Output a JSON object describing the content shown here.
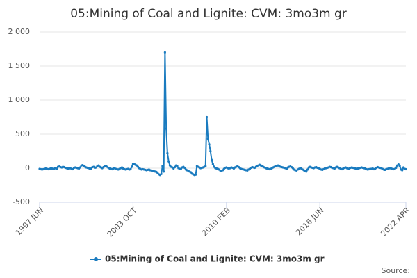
{
  "chart_data": {
    "type": "line",
    "title": "05:Mining of Coal and Lignite: CVM: 3mo3m gr",
    "source": "Source:",
    "categories": [
      "1997 JUN",
      null,
      null,
      null,
      null,
      null,
      null,
      null,
      null,
      null,
      null,
      null,
      null,
      null,
      null,
      null,
      null,
      null,
      null,
      null,
      null,
      null,
      null,
      null,
      null,
      null,
      null,
      null,
      null,
      null,
      null,
      null,
      null,
      null,
      null,
      null,
      null,
      null,
      null,
      null,
      null,
      null,
      null,
      null,
      null,
      null,
      null,
      null,
      null,
      null,
      null,
      null,
      null,
      null,
      null,
      null,
      null,
      null,
      null,
      null,
      null,
      null,
      null,
      null,
      null,
      null,
      null,
      null,
      null,
      null,
      null,
      null,
      null,
      null,
      null,
      null,
      "2003 OCT",
      null,
      null,
      null,
      null,
      null,
      null,
      null,
      null,
      null,
      null,
      null,
      null,
      null,
      null,
      null,
      null,
      null,
      null,
      null,
      null,
      null,
      null,
      null,
      null,
      null,
      null,
      null,
      null,
      null,
      null,
      null,
      null,
      null,
      null,
      null,
      null,
      null,
      null,
      null,
      null,
      null,
      null,
      null,
      null,
      null,
      null,
      null,
      null,
      null,
      null,
      null,
      null,
      null,
      null,
      null,
      null,
      null,
      null,
      null,
      null,
      null,
      null,
      null,
      null,
      null,
      null,
      null,
      null,
      null,
      null,
      null,
      null,
      null,
      null,
      null,
      "2010 FEB",
      null,
      null,
      null,
      null,
      null,
      null,
      null,
      null,
      null,
      null,
      null,
      null,
      null,
      null,
      null,
      null,
      null,
      null,
      null,
      null,
      null,
      null,
      null,
      null,
      null,
      null,
      null,
      null,
      null,
      null,
      null,
      null,
      null,
      null,
      null,
      null,
      null,
      null,
      null,
      null,
      null,
      null,
      null,
      null,
      null,
      null,
      null,
      null,
      null,
      null,
      null,
      null,
      null,
      null,
      null,
      null,
      null,
      null,
      null,
      null,
      null,
      null,
      null,
      null,
      null,
      null,
      null,
      null,
      null,
      null,
      null,
      null,
      null,
      null,
      null,
      "2016 JUN",
      null,
      null,
      null,
      null,
      null,
      null,
      null,
      null,
      null,
      null,
      null,
      null,
      null,
      null,
      null,
      null,
      null,
      null,
      null,
      null,
      null,
      null,
      null,
      null,
      null,
      null,
      null,
      null,
      null,
      null,
      null,
      null,
      null,
      null,
      null,
      null,
      null,
      null,
      null,
      null,
      null,
      null,
      null,
      null,
      null,
      null,
      null,
      null,
      null,
      null,
      null,
      null,
      null,
      null,
      null,
      null,
      null,
      null,
      null,
      null,
      null,
      null,
      null,
      null,
      null,
      null,
      null,
      null,
      null,
      "2022 APR"
    ],
    "series": [
      {
        "name": "05:Mining of Coal and Lignite: CVM: 3mo3m gr",
        "color": "#1a7bbf",
        "values": [
          -10,
          -15,
          -20,
          -15,
          -10,
          -5,
          -10,
          -15,
          -10,
          -5,
          -5,
          -10,
          -5,
          0,
          -10,
          20,
          25,
          15,
          10,
          20,
          15,
          5,
          0,
          -5,
          -5,
          0,
          -10,
          -15,
          5,
          10,
          5,
          0,
          -5,
          10,
          40,
          45,
          30,
          20,
          10,
          5,
          0,
          -10,
          -5,
          15,
          20,
          5,
          10,
          30,
          40,
          20,
          10,
          0,
          15,
          30,
          35,
          20,
          5,
          -5,
          -10,
          -15,
          -5,
          0,
          -10,
          -15,
          -20,
          -10,
          0,
          10,
          -5,
          -15,
          -20,
          -15,
          -10,
          -20,
          -15,
          20,
          60,
          65,
          50,
          40,
          20,
          0,
          -10,
          -20,
          -15,
          -20,
          -25,
          -30,
          -25,
          -20,
          -30,
          -35,
          -40,
          -45,
          -50,
          -55,
          -70,
          -90,
          -100,
          -85,
          30,
          -50,
          1700,
          580,
          220,
          100,
          40,
          20,
          10,
          -5,
          15,
          40,
          30,
          0,
          -10,
          -10,
          10,
          20,
          5,
          -20,
          -30,
          -40,
          -50,
          -60,
          -80,
          -90,
          -100,
          -95,
          30,
          20,
          10,
          0,
          5,
          10,
          20,
          30,
          750,
          430,
          350,
          250,
          120,
          60,
          20,
          0,
          -5,
          -10,
          -20,
          -35,
          -40,
          -30,
          -10,
          5,
          10,
          0,
          -5,
          0,
          10,
          5,
          -5,
          10,
          20,
          30,
          15,
          0,
          -10,
          -15,
          -20,
          -25,
          -30,
          -35,
          -20,
          -10,
          5,
          15,
          10,
          5,
          20,
          35,
          40,
          50,
          40,
          30,
          20,
          10,
          0,
          -5,
          -10,
          -15,
          -10,
          0,
          10,
          20,
          30,
          35,
          40,
          30,
          20,
          15,
          10,
          5,
          0,
          -10,
          10,
          20,
          25,
          15,
          0,
          -20,
          -30,
          -35,
          -20,
          -10,
          0,
          -5,
          -20,
          -30,
          -40,
          -50,
          -20,
          10,
          20,
          10,
          5,
          0,
          10,
          15,
          5,
          0,
          -10,
          -20,
          -25,
          -15,
          -5,
          0,
          5,
          10,
          20,
          15,
          5,
          0,
          -5,
          10,
          20,
          10,
          0,
          -10,
          -15,
          -5,
          5,
          10,
          0,
          -10,
          -5,
          5,
          10,
          5,
          0,
          -5,
          -10,
          -5,
          0,
          5,
          10,
          5,
          0,
          -5,
          -15,
          -20,
          -15,
          -10,
          -10,
          -5,
          -15,
          -10,
          5,
          15,
          10,
          5,
          0,
          -10,
          -20,
          -25,
          -15,
          -10,
          -5,
          0,
          -5,
          -10,
          -15,
          -10,
          5,
          40,
          55,
          30,
          -20,
          -30,
          10,
          -10,
          -15
        ]
      }
    ],
    "ylim": [
      -500,
      2000
    ],
    "yticks": [
      {
        "value": -500,
        "label": "-500"
      },
      0,
      500,
      {
        "value": 1000,
        "label": "1 000"
      },
      {
        "value": 1500,
        "label": "1 500"
      },
      {
        "value": 2000,
        "label": "2 000"
      }
    ],
    "grid": true
  }
}
